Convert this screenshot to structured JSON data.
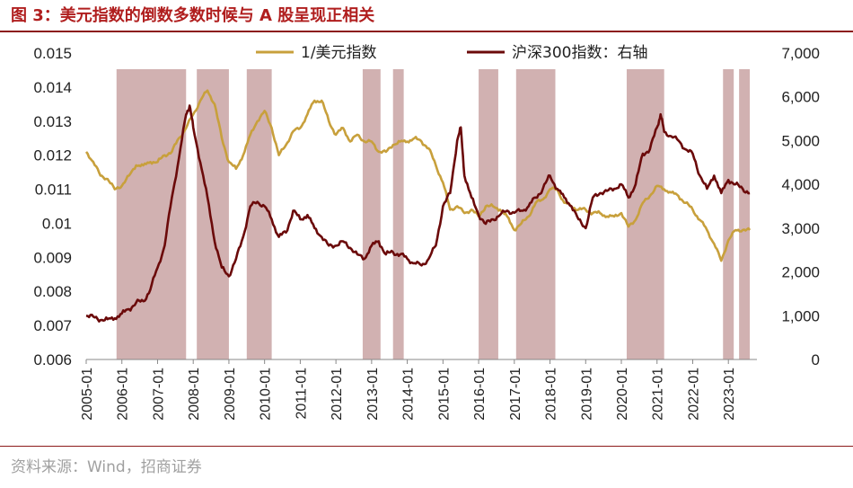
{
  "title": "图 3：美元指数的倒数多数时候与 A 股呈现正相关",
  "source": "资料来源：Wind，招商证券",
  "chart_data": {
    "type": "line",
    "x_range": [
      2005.0,
      2023.8
    ],
    "x_ticks": [
      "2005-01",
      "2006-01",
      "2007-01",
      "2008-01",
      "2009-01",
      "2010-01",
      "2011-01",
      "2012-01",
      "2013-01",
      "2014-01",
      "2015-01",
      "2016-01",
      "2017-01",
      "2018-01",
      "2019-01",
      "2020-01",
      "2021-01",
      "2022-01",
      "2023-01"
    ],
    "y_left": {
      "range": [
        0.006,
        0.015
      ],
      "ticks": [
        "0.015",
        "0.014",
        "0.013",
        "0.012",
        "0.011",
        "0.01",
        "0.009",
        "0.008",
        "0.007",
        "0.006"
      ],
      "tick_values": [
        0.015,
        0.014,
        0.013,
        0.012,
        0.011,
        0.01,
        0.009,
        0.008,
        0.007,
        0.006
      ]
    },
    "y_right": {
      "range": [
        0,
        7000
      ],
      "ticks": [
        "7,000",
        "6,000",
        "5,000",
        "4,000",
        "3,000",
        "2,000",
        "1,000",
        "0"
      ],
      "tick_values": [
        7000,
        6000,
        5000,
        4000,
        3000,
        2000,
        1000,
        0
      ]
    },
    "shaded_periods": [
      [
        2005.85,
        2007.8
      ],
      [
        2008.1,
        2009.0
      ],
      [
        2009.5,
        2010.2
      ],
      [
        2012.75,
        2013.25
      ],
      [
        2013.6,
        2013.9
      ],
      [
        2016.0,
        2016.55
      ],
      [
        2017.05,
        2018.15
      ],
      [
        2020.15,
        2021.2
      ],
      [
        2022.85,
        2023.15
      ],
      [
        2023.3,
        2023.6
      ]
    ],
    "series": [
      {
        "name": "1/美元指数",
        "axis": "left",
        "color": "#c8a03c",
        "points": [
          [
            2005.0,
            0.0121
          ],
          [
            2005.2,
            0.0118
          ],
          [
            2005.4,
            0.0114
          ],
          [
            2005.6,
            0.0113
          ],
          [
            2005.8,
            0.011
          ],
          [
            2006.0,
            0.0111
          ],
          [
            2006.2,
            0.0114
          ],
          [
            2006.4,
            0.0117
          ],
          [
            2006.6,
            0.0117
          ],
          [
            2006.8,
            0.0118
          ],
          [
            2007.0,
            0.0118
          ],
          [
            2007.2,
            0.012
          ],
          [
            2007.4,
            0.0121
          ],
          [
            2007.6,
            0.0125
          ],
          [
            2007.8,
            0.0128
          ],
          [
            2008.0,
            0.0132
          ],
          [
            2008.2,
            0.0136
          ],
          [
            2008.4,
            0.0139
          ],
          [
            2008.6,
            0.0135
          ],
          [
            2008.8,
            0.0125
          ],
          [
            2009.0,
            0.0118
          ],
          [
            2009.2,
            0.0116
          ],
          [
            2009.4,
            0.012
          ],
          [
            2009.6,
            0.0126
          ],
          [
            2009.8,
            0.013
          ],
          [
            2010.0,
            0.0133
          ],
          [
            2010.2,
            0.0128
          ],
          [
            2010.4,
            0.012
          ],
          [
            2010.6,
            0.0123
          ],
          [
            2010.8,
            0.0127
          ],
          [
            2011.0,
            0.0128
          ],
          [
            2011.2,
            0.0132
          ],
          [
            2011.4,
            0.0136
          ],
          [
            2011.6,
            0.0136
          ],
          [
            2011.8,
            0.013
          ],
          [
            2012.0,
            0.0126
          ],
          [
            2012.2,
            0.0128
          ],
          [
            2012.4,
            0.0124
          ],
          [
            2012.6,
            0.0126
          ],
          [
            2012.8,
            0.0124
          ],
          [
            2013.0,
            0.0124
          ],
          [
            2013.2,
            0.0121
          ],
          [
            2013.4,
            0.0121
          ],
          [
            2013.6,
            0.0123
          ],
          [
            2013.8,
            0.0124
          ],
          [
            2014.0,
            0.0124
          ],
          [
            2014.2,
            0.0125
          ],
          [
            2014.4,
            0.0124
          ],
          [
            2014.6,
            0.0122
          ],
          [
            2014.8,
            0.0117
          ],
          [
            2015.0,
            0.0112
          ],
          [
            2015.2,
            0.0104
          ],
          [
            2015.4,
            0.0105
          ],
          [
            2015.6,
            0.0103
          ],
          [
            2015.8,
            0.0104
          ],
          [
            2016.0,
            0.0102
          ],
          [
            2016.2,
            0.0105
          ],
          [
            2016.4,
            0.0105
          ],
          [
            2016.6,
            0.0104
          ],
          [
            2016.8,
            0.0102
          ],
          [
            2017.0,
            0.0098
          ],
          [
            2017.2,
            0.01
          ],
          [
            2017.4,
            0.0102
          ],
          [
            2017.6,
            0.0106
          ],
          [
            2017.8,
            0.0107
          ],
          [
            2018.0,
            0.011
          ],
          [
            2018.2,
            0.011
          ],
          [
            2018.4,
            0.0106
          ],
          [
            2018.6,
            0.0105
          ],
          [
            2018.8,
            0.0104
          ],
          [
            2019.0,
            0.0104
          ],
          [
            2019.2,
            0.0103
          ],
          [
            2019.4,
            0.0103
          ],
          [
            2019.6,
            0.0102
          ],
          [
            2019.8,
            0.0102
          ],
          [
            2020.0,
            0.0103
          ],
          [
            2020.2,
            0.0099
          ],
          [
            2020.4,
            0.0101
          ],
          [
            2020.6,
            0.0106
          ],
          [
            2020.8,
            0.0108
          ],
          [
            2021.0,
            0.0111
          ],
          [
            2021.2,
            0.011
          ],
          [
            2021.4,
            0.0109
          ],
          [
            2021.6,
            0.0108
          ],
          [
            2021.8,
            0.0106
          ],
          [
            2022.0,
            0.0104
          ],
          [
            2022.2,
            0.0101
          ],
          [
            2022.4,
            0.0098
          ],
          [
            2022.6,
            0.0094
          ],
          [
            2022.8,
            0.0089
          ],
          [
            2023.0,
            0.0095
          ],
          [
            2023.2,
            0.0098
          ],
          [
            2023.4,
            0.0098
          ],
          [
            2023.6,
            0.0098
          ]
        ]
      },
      {
        "name": "沪深300指数：右轴",
        "axis": "right",
        "color": "#6b0a0a",
        "points": [
          [
            2005.0,
            1000
          ],
          [
            2005.2,
            980
          ],
          [
            2005.4,
            900
          ],
          [
            2005.6,
            920
          ],
          [
            2005.8,
            940
          ],
          [
            2006.0,
            1050
          ],
          [
            2006.2,
            1150
          ],
          [
            2006.4,
            1300
          ],
          [
            2006.6,
            1330
          ],
          [
            2006.8,
            1600
          ],
          [
            2007.0,
            2100
          ],
          [
            2007.2,
            2600
          ],
          [
            2007.4,
            3700
          ],
          [
            2007.6,
            4600
          ],
          [
            2007.8,
            5600
          ],
          [
            2007.9,
            5800
          ],
          [
            2008.0,
            5300
          ],
          [
            2008.2,
            4500
          ],
          [
            2008.4,
            3700
          ],
          [
            2008.6,
            2700
          ],
          [
            2008.8,
            2100
          ],
          [
            2009.0,
            1900
          ],
          [
            2009.2,
            2300
          ],
          [
            2009.4,
            2800
          ],
          [
            2009.6,
            3500
          ],
          [
            2009.8,
            3600
          ],
          [
            2010.0,
            3500
          ],
          [
            2010.2,
            3200
          ],
          [
            2010.4,
            2800
          ],
          [
            2010.6,
            2900
          ],
          [
            2010.8,
            3400
          ],
          [
            2011.0,
            3200
          ],
          [
            2011.2,
            3300
          ],
          [
            2011.4,
            3000
          ],
          [
            2011.6,
            2800
          ],
          [
            2011.8,
            2600
          ],
          [
            2012.0,
            2600
          ],
          [
            2012.2,
            2700
          ],
          [
            2012.4,
            2550
          ],
          [
            2012.6,
            2400
          ],
          [
            2012.8,
            2300
          ],
          [
            2013.0,
            2600
          ],
          [
            2013.2,
            2700
          ],
          [
            2013.4,
            2400
          ],
          [
            2013.6,
            2450
          ],
          [
            2013.8,
            2400
          ],
          [
            2014.0,
            2300
          ],
          [
            2014.2,
            2200
          ],
          [
            2014.4,
            2150
          ],
          [
            2014.6,
            2300
          ],
          [
            2014.8,
            2600
          ],
          [
            2015.0,
            3500
          ],
          [
            2015.2,
            3800
          ],
          [
            2015.4,
            5000
          ],
          [
            2015.5,
            5300
          ],
          [
            2015.6,
            4200
          ],
          [
            2015.8,
            3700
          ],
          [
            2016.0,
            3300
          ],
          [
            2016.2,
            3100
          ],
          [
            2016.4,
            3200
          ],
          [
            2016.6,
            3300
          ],
          [
            2016.8,
            3400
          ],
          [
            2017.0,
            3350
          ],
          [
            2017.2,
            3400
          ],
          [
            2017.4,
            3500
          ],
          [
            2017.6,
            3700
          ],
          [
            2017.8,
            3900
          ],
          [
            2018.0,
            4200
          ],
          [
            2018.2,
            3900
          ],
          [
            2018.4,
            3700
          ],
          [
            2018.6,
            3500
          ],
          [
            2018.8,
            3200
          ],
          [
            2019.0,
            3000
          ],
          [
            2019.2,
            3700
          ],
          [
            2019.4,
            3800
          ],
          [
            2019.6,
            3850
          ],
          [
            2019.8,
            3900
          ],
          [
            2020.0,
            4000
          ],
          [
            2020.2,
            3700
          ],
          [
            2020.4,
            4000
          ],
          [
            2020.6,
            4700
          ],
          [
            2020.8,
            4800
          ],
          [
            2021.0,
            5300
          ],
          [
            2021.1,
            5600
          ],
          [
            2021.2,
            5200
          ],
          [
            2021.4,
            5100
          ],
          [
            2021.6,
            5000
          ],
          [
            2021.8,
            4800
          ],
          [
            2022.0,
            4700
          ],
          [
            2022.2,
            4200
          ],
          [
            2022.4,
            3900
          ],
          [
            2022.6,
            4200
          ],
          [
            2022.8,
            3800
          ],
          [
            2023.0,
            4100
          ],
          [
            2023.2,
            4000
          ],
          [
            2023.4,
            3900
          ],
          [
            2023.6,
            3800
          ]
        ]
      }
    ]
  }
}
